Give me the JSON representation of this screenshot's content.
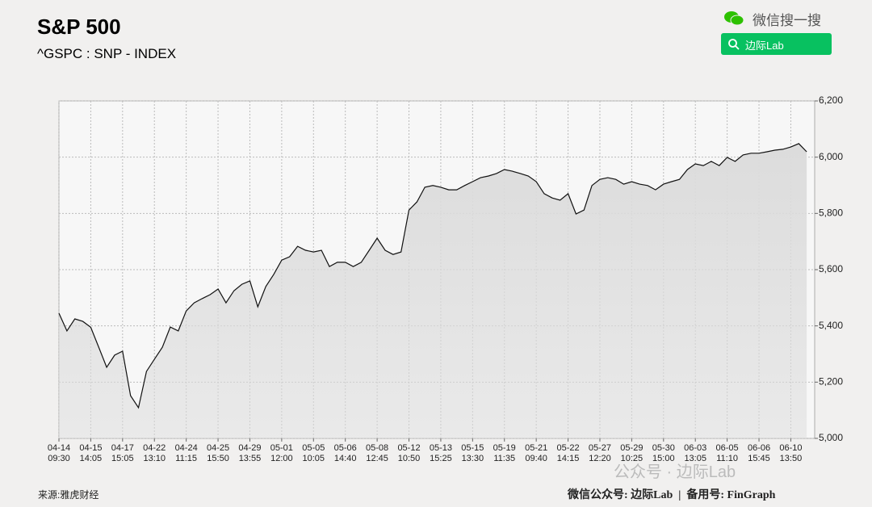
{
  "header": {
    "search_label": "微信搜一搜",
    "search_button": "边际Lab"
  },
  "chart_data": {
    "type": "line",
    "title": "S&P 500",
    "subtitle": "^GSPC : SNP - INDEX",
    "source": "来源:雅虎财经",
    "footer": "微信公众号: 边际Lab  |  备用号: FinGraph",
    "watermark": "公众号 · 边际Lab",
    "color": "#111111",
    "area_color": "#dcdcdc",
    "grid": true,
    "xlim": [
      0,
      95
    ],
    "ylim": [
      5000,
      6200
    ],
    "xticks": [
      {
        "value": 0,
        "label": "04-14 09:30"
      },
      {
        "value": 4,
        "label": "04-15 14:05"
      },
      {
        "value": 8,
        "label": "04-17 15:05"
      },
      {
        "value": 12,
        "label": "04-22 13:10"
      },
      {
        "value": 16,
        "label": "04-24 11:15"
      },
      {
        "value": 20,
        "label": "04-25 15:50"
      },
      {
        "value": 24,
        "label": "04-29 13:55"
      },
      {
        "value": 28,
        "label": "05-01 12:00"
      },
      {
        "value": 32,
        "label": "05-05 10:05"
      },
      {
        "value": 36,
        "label": "05-06 14:40"
      },
      {
        "value": 40,
        "label": "05-08 12:45"
      },
      {
        "value": 44,
        "label": "05-12 10:50"
      },
      {
        "value": 48,
        "label": "05-13 15:25"
      },
      {
        "value": 52,
        "label": "05-15 13:30"
      },
      {
        "value": 56,
        "label": "05-19 11:35"
      },
      {
        "value": 60,
        "label": "05-21 09:40"
      },
      {
        "value": 64,
        "label": "05-22 14:15"
      },
      {
        "value": 68,
        "label": "05-27 12:20"
      },
      {
        "value": 72,
        "label": "05-29 10:25"
      },
      {
        "value": 76,
        "label": "05-30 15:00"
      },
      {
        "value": 80,
        "label": "06-03 13:05"
      },
      {
        "value": 84,
        "label": "06-05 11:10"
      },
      {
        "value": 88,
        "label": "06-06 15:45"
      },
      {
        "value": 92,
        "label": "06-10 13:50"
      }
    ],
    "yticks": [
      {
        "value": 5000,
        "label": "5,000"
      },
      {
        "value": 5200,
        "label": "5,200"
      },
      {
        "value": 5400,
        "label": "5,400"
      },
      {
        "value": 5600,
        "label": "5,600"
      },
      {
        "value": 5800,
        "label": "5,800"
      },
      {
        "value": 6000,
        "label": "6,000"
      },
      {
        "value": 6200,
        "label": "6,200"
      }
    ],
    "values": [
      5445,
      5382,
      5425,
      5416,
      5395,
      5324,
      5253,
      5296,
      5310,
      5152,
      5109,
      5238,
      5281,
      5324,
      5396,
      5382,
      5453,
      5482,
      5497,
      5511,
      5531,
      5482,
      5525,
      5548,
      5560,
      5468,
      5540,
      5583,
      5634,
      5646,
      5683,
      5669,
      5663,
      5669,
      5611,
      5626,
      5626,
      5611,
      5626,
      5669,
      5712,
      5669,
      5654,
      5663,
      5812,
      5841,
      5893,
      5899,
      5893,
      5884,
      5884,
      5899,
      5913,
      5927,
      5933,
      5942,
      5956,
      5950,
      5942,
      5933,
      5913,
      5870,
      5855,
      5847,
      5870,
      5798,
      5812,
      5899,
      5921,
      5927,
      5921,
      5904,
      5913,
      5904,
      5899,
      5884,
      5904,
      5913,
      5921,
      5956,
      5976,
      5970,
      5985,
      5970,
      5999,
      5985,
      6008,
      6014,
      6014,
      6019,
      6025,
      6028,
      6036,
      6048,
      6019
    ]
  }
}
